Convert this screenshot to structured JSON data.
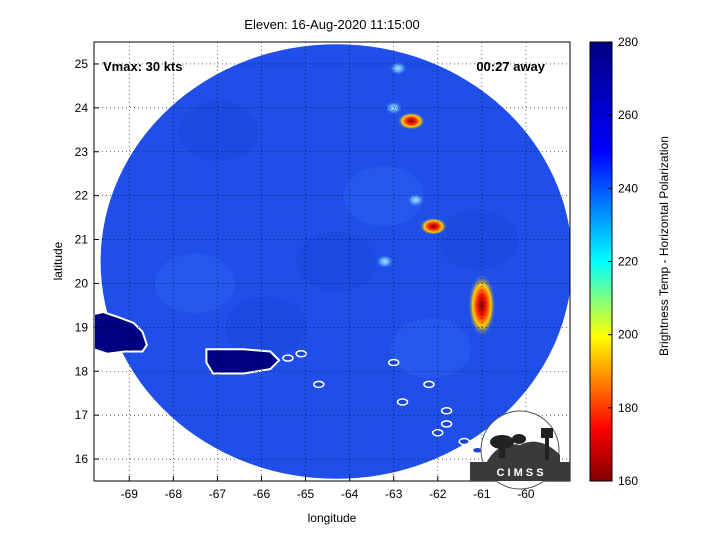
{
  "figure": {
    "title": "Eleven: 16-Aug-2020 11:15:00",
    "xlabel": "longitude",
    "ylabel": "latitude",
    "vmax_label": "Vmax: 30 kts",
    "away_label": "00:27 away",
    "logo_text": "C I M S S"
  },
  "map": {
    "xlim": [
      -69.8,
      -59.0
    ],
    "ylim": [
      15.5,
      25.5
    ],
    "x_ticks": [
      -69,
      -68,
      -67,
      -66,
      -65,
      -64,
      -63,
      -62,
      -61,
      -60
    ],
    "y_ticks": [
      16,
      17,
      18,
      19,
      20,
      21,
      22,
      23,
      24,
      25
    ],
    "grid": "dotted",
    "swath": {
      "center": [
        -64.3,
        20.5
      ],
      "radius_lon": 5.35,
      "radius_lat": 4.95
    },
    "swath_color": "#1f4fe8",
    "coastline_color": "#ffffff",
    "hot_spots": [
      {
        "lon": -61.0,
        "lat": 19.5,
        "temp": 168
      },
      {
        "lon": -62.1,
        "lat": 21.3,
        "temp": 185
      },
      {
        "lon": -62.6,
        "lat": 23.7,
        "temp": 190
      },
      {
        "lon": -62.5,
        "lat": 21.9,
        "temp": 240
      },
      {
        "lon": -62.9,
        "lat": 24.9,
        "temp": 242
      },
      {
        "lon": -63.0,
        "lat": 24.0,
        "temp": 245
      },
      {
        "lon": -63.2,
        "lat": 20.5,
        "temp": 250
      }
    ],
    "land": [
      {
        "name": "Hispaniola",
        "lon": -69.2,
        "lat": 18.8
      },
      {
        "name": "Puerto Rico",
        "lon": -66.5,
        "lat": 18.2
      }
    ]
  },
  "colorbar": {
    "label": "Brightness Temp - Horizontal Polarization",
    "ticks": [
      160,
      180,
      200,
      220,
      240,
      260,
      280
    ],
    "range": [
      160,
      280
    ],
    "colors": [
      "#800000",
      "#ff0000",
      "#ffff00",
      "#00ffff",
      "#0000ff",
      "#000080"
    ]
  }
}
